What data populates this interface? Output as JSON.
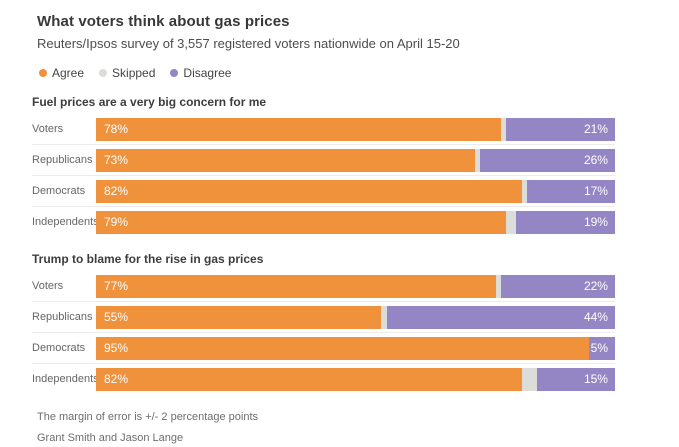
{
  "title": "What voters think about gas prices",
  "subtitle": "Reuters/Ipsos survey of 3,557 registered voters nationwide on April 15-20",
  "legend": [
    {
      "label": "Agree",
      "color": "#f0913b"
    },
    {
      "label": "Skipped",
      "color": "#dcdcd8"
    },
    {
      "label": "Disagree",
      "color": "#9486c5"
    }
  ],
  "colors": {
    "agree": "#f0913b",
    "skipped": "#dcdcd8",
    "disagree": "#9486c5",
    "value_text": "#ffffff",
    "separator": "#ececea"
  },
  "chart_data": [
    {
      "type": "bar",
      "orientation": "horizontal",
      "stacked": true,
      "title": "Fuel prices are a very big concern for me",
      "categories": [
        "Voters",
        "Republicans",
        "Democrats",
        "Independents"
      ],
      "series": [
        {
          "name": "Agree",
          "values": [
            78,
            73,
            82,
            79
          ]
        },
        {
          "name": "Skipped",
          "values": [
            1,
            1,
            1,
            2
          ]
        },
        {
          "name": "Disagree",
          "values": [
            21,
            26,
            17,
            19
          ]
        }
      ],
      "xlim": [
        0,
        100
      ],
      "value_suffix": "%",
      "legend_position": "top",
      "grid": false
    },
    {
      "type": "bar",
      "orientation": "horizontal",
      "stacked": true,
      "title": "Trump to blame for the rise in gas prices",
      "categories": [
        "Voters",
        "Republicans",
        "Democrats",
        "Independents"
      ],
      "series": [
        {
          "name": "Agree",
          "values": [
            77,
            55,
            95,
            82
          ]
        },
        {
          "name": "Skipped",
          "values": [
            1,
            1,
            0,
            3
          ]
        },
        {
          "name": "Disagree",
          "values": [
            22,
            44,
            5,
            15
          ]
        }
      ],
      "xlim": [
        0,
        100
      ],
      "value_suffix": "%",
      "legend_position": "top",
      "grid": false
    }
  ],
  "footer": {
    "margin_note": "The margin of error is +/- 2 percentage points",
    "credit": "Grant Smith and Jason Lange"
  }
}
